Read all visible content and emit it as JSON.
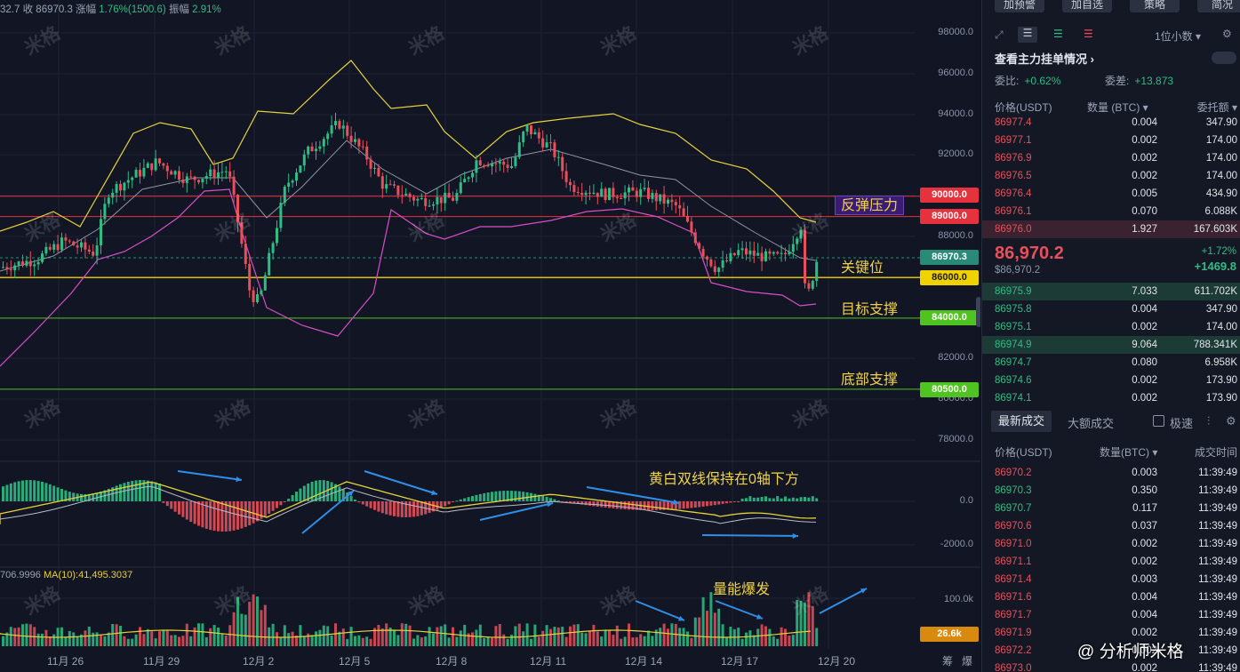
{
  "chart": {
    "info_line": {
      "prefix": "32.7",
      "close_label": "收",
      "close": "86970.3",
      "change_label": "涨幅",
      "change": "1.76%(1500.6)",
      "amp_label": "振幅",
      "amp": "2.91%"
    },
    "ma_line": {
      "left": "706.9996",
      "ma10": "MA(10):41,495.3037"
    },
    "price_axis": [
      "98000.0",
      "96000.0",
      "94000.0",
      "92000.0",
      "88000.0",
      "82000.0",
      "80000.0",
      "78000.0"
    ],
    "macd_axis": [
      "0.0",
      "-2000.0"
    ],
    "vol_axis": [
      "100.0k"
    ],
    "price_tags": [
      {
        "label": "90000.0",
        "color": "#e5323d"
      },
      {
        "label": "89000.0",
        "color": "#e5323d"
      },
      {
        "label": "86970.3",
        "color": "#2a8a78"
      },
      {
        "label": "86000.0",
        "color": "#f0d200"
      },
      {
        "label": "84000.0",
        "color": "#4fc31f"
      },
      {
        "label": "80500.0",
        "color": "#4fc31f"
      },
      {
        "label": "26.6k",
        "color": "#d88a0e"
      }
    ],
    "annotations": {
      "rebound_pressure": "反弹压力",
      "key_level": "关键位",
      "target_support": "目标支撑",
      "bottom_support": "底部支撑",
      "macd_note": "黄白双线保持在0轴下方",
      "volume_note": "量能爆发"
    },
    "x_labels": [
      "11月 26",
      "11月 29",
      "12月 2",
      "12月 5",
      "12月 8",
      "12月 11",
      "12月 14",
      "12月 17",
      "12月 20"
    ],
    "x_right_labels": [
      "筹",
      "爆"
    ],
    "watermark": "米格",
    "credit": "@ 分析师米格"
  },
  "panel": {
    "top_buttons": [
      "加预警",
      "加自选",
      "策略",
      "简况"
    ],
    "precision": "1位小数",
    "book_title": "查看主力挂单情况",
    "ratio_label": "委比:",
    "ratio_value": "+0.62%",
    "diff_label": "委差:",
    "diff_value": "+13.873",
    "book_headers": [
      "价格(USDT)",
      "数量 (BTC)",
      "委托额"
    ],
    "asks": [
      [
        "86977.4",
        "0.004",
        "347.90"
      ],
      [
        "86977.1",
        "0.002",
        "174.00"
      ],
      [
        "86976.9",
        "0.002",
        "174.00"
      ],
      [
        "86976.5",
        "0.002",
        "174.00"
      ],
      [
        "86976.4",
        "0.005",
        "434.90"
      ],
      [
        "86976.1",
        "0.070",
        "6.088K"
      ],
      [
        "86976.0",
        "1.927",
        "167.603K"
      ]
    ],
    "last_price": "86,970.2",
    "last_sub": "$86,970.2",
    "last_pct": "+1.72%",
    "last_change": "+1469.8",
    "bids": [
      [
        "86975.9",
        "7.033",
        "611.702K"
      ],
      [
        "86975.8",
        "0.004",
        "347.90"
      ],
      [
        "86975.1",
        "0.002",
        "174.00"
      ],
      [
        "86974.9",
        "9.064",
        "788.341K"
      ],
      [
        "86974.7",
        "0.080",
        "6.958K"
      ],
      [
        "86974.6",
        "0.002",
        "173.90"
      ],
      [
        "86974.1",
        "0.002",
        "173.90"
      ]
    ],
    "trade_tabs": [
      "最新成交",
      "大额成交",
      "极速"
    ],
    "trade_headers": [
      "价格(USDT)",
      "数量(BTC)",
      "成交时间"
    ],
    "trades": [
      [
        "86970.2",
        "0.003",
        "11:39:49",
        "down"
      ],
      [
        "86970.3",
        "0.350",
        "11:39:49",
        "up"
      ],
      [
        "86970.7",
        "0.117",
        "11:39:49",
        "up"
      ],
      [
        "86970.6",
        "0.037",
        "11:39:49",
        "down"
      ],
      [
        "86971.0",
        "0.002",
        "11:39:49",
        "down"
      ],
      [
        "86971.1",
        "0.002",
        "11:39:49",
        "down"
      ],
      [
        "86971.4",
        "0.003",
        "11:39:49",
        "down"
      ],
      [
        "86971.6",
        "0.004",
        "11:39:49",
        "down"
      ],
      [
        "86971.7",
        "0.004",
        "11:39:49",
        "down"
      ],
      [
        "86971.9",
        "0.002",
        "11:39:49",
        "down"
      ],
      [
        "86972.2",
        "0.002",
        "11:39:49",
        "down"
      ],
      [
        "86973.0",
        "0.002",
        "11:39:49",
        "down"
      ]
    ]
  }
}
